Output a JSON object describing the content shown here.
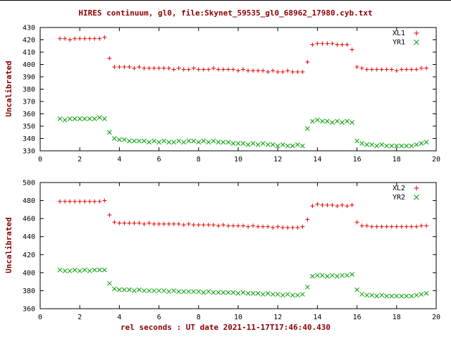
{
  "title": "HIRES continuum, gl0, file:Skynet_59535_gl0_68962_17980.cyb.txt",
  "xlabel": "rel seconds : UT date 2021-11-17T17:46:40.430",
  "colors": {
    "red_series": "#e60000",
    "green_series": "#00a000",
    "label_text": "#8b0000",
    "tick_text": "#000000"
  },
  "chart_data": [
    {
      "type": "scatter",
      "ylabel": "Uncalibrated",
      "xlim": [
        0,
        20
      ],
      "ylim": [
        330,
        430
      ],
      "xtick": 2,
      "ytick": 10,
      "grid": false,
      "legend_position": "top-right-inside",
      "x": [
        1,
        1.25,
        1.5,
        1.75,
        2,
        2.25,
        2.5,
        2.75,
        3,
        3.25,
        3.5,
        3.75,
        4,
        4.25,
        4.5,
        4.75,
        5,
        5.25,
        5.5,
        5.75,
        6,
        6.25,
        6.5,
        6.75,
        7,
        7.25,
        7.5,
        7.75,
        8,
        8.25,
        8.5,
        8.75,
        9,
        9.25,
        9.5,
        9.75,
        10,
        10.25,
        10.5,
        10.75,
        11,
        11.25,
        11.5,
        11.75,
        12,
        12.25,
        12.5,
        12.75,
        13,
        13.25,
        13.5,
        13.75,
        14,
        14.25,
        14.5,
        14.75,
        15,
        15.25,
        15.5,
        15.75,
        16,
        16.25,
        16.5,
        16.75,
        17,
        17.25,
        17.5,
        17.75,
        18,
        18.25,
        18.5,
        18.75,
        19,
        19.25,
        19.5
      ],
      "series": [
        {
          "name": "XL1",
          "marker": "plus",
          "color": "#e60000",
          "values": [
            421,
            421,
            420,
            421,
            421,
            421,
            421,
            421,
            421,
            422,
            405,
            398,
            398,
            398,
            398,
            397,
            398,
            397,
            397,
            397,
            397,
            397,
            397,
            396,
            397,
            396,
            396,
            397,
            396,
            396,
            396,
            397,
            396,
            396,
            396,
            396,
            395,
            396,
            395,
            395,
            395,
            395,
            394,
            395,
            394,
            394,
            395,
            394,
            394,
            394,
            402,
            416,
            417,
            417,
            417,
            417,
            416,
            416,
            416,
            412,
            398,
            397,
            396,
            396,
            396,
            396,
            396,
            396,
            395,
            396,
            396,
            396,
            396,
            397,
            397
          ]
        },
        {
          "name": "YR1",
          "marker": "cross",
          "color": "#00a000",
          "values": [
            356,
            355,
            356,
            356,
            356,
            356,
            356,
            356,
            357,
            356,
            345,
            340,
            339,
            339,
            338,
            338,
            338,
            338,
            337,
            338,
            337,
            338,
            337,
            337,
            338,
            337,
            338,
            338,
            337,
            338,
            337,
            338,
            337,
            337,
            337,
            336,
            336,
            336,
            335,
            336,
            335,
            336,
            335,
            335,
            334,
            335,
            334,
            334,
            335,
            334,
            348,
            354,
            355,
            354,
            354,
            353,
            354,
            353,
            354,
            353,
            338,
            336,
            335,
            335,
            334,
            335,
            334,
            334,
            334,
            334,
            334,
            334,
            335,
            336,
            337
          ]
        }
      ]
    },
    {
      "type": "scatter",
      "ylabel": "Uncalibrated",
      "xlim": [
        0,
        20
      ],
      "ylim": [
        360,
        500
      ],
      "xtick": 2,
      "ytick": 20,
      "grid": false,
      "legend_position": "top-right-inside",
      "x": [
        1,
        1.25,
        1.5,
        1.75,
        2,
        2.25,
        2.5,
        2.75,
        3,
        3.25,
        3.5,
        3.75,
        4,
        4.25,
        4.5,
        4.75,
        5,
        5.25,
        5.5,
        5.75,
        6,
        6.25,
        6.5,
        6.75,
        7,
        7.25,
        7.5,
        7.75,
        8,
        8.25,
        8.5,
        8.75,
        9,
        9.25,
        9.5,
        9.75,
        10,
        10.25,
        10.5,
        10.75,
        11,
        11.25,
        11.5,
        11.75,
        12,
        12.25,
        12.5,
        12.75,
        13,
        13.25,
        13.5,
        13.75,
        14,
        14.25,
        14.5,
        14.75,
        15,
        15.25,
        15.5,
        15.75,
        16,
        16.25,
        16.5,
        16.75,
        17,
        17.25,
        17.5,
        17.75,
        18,
        18.25,
        18.5,
        18.75,
        19,
        19.25,
        19.5
      ],
      "series": [
        {
          "name": "XL2",
          "marker": "plus",
          "color": "#e60000",
          "values": [
            479,
            479,
            479,
            479,
            479,
            479,
            479,
            479,
            479,
            480,
            464,
            456,
            455,
            455,
            455,
            455,
            455,
            454,
            455,
            454,
            454,
            454,
            454,
            454,
            454,
            453,
            454,
            453,
            453,
            453,
            453,
            453,
            452,
            453,
            452,
            452,
            452,
            452,
            451,
            452,
            451,
            451,
            451,
            450,
            451,
            450,
            450,
            450,
            450,
            451,
            459,
            474,
            476,
            475,
            475,
            475,
            474,
            475,
            474,
            475,
            456,
            452,
            452,
            451,
            451,
            451,
            451,
            451,
            451,
            451,
            451,
            451,
            451,
            452,
            452
          ]
        },
        {
          "name": "YR2",
          "marker": "cross",
          "color": "#00a000",
          "values": [
            403,
            402,
            402,
            403,
            402,
            403,
            402,
            403,
            403,
            403,
            388,
            382,
            381,
            381,
            381,
            380,
            381,
            380,
            380,
            380,
            380,
            380,
            379,
            380,
            379,
            379,
            379,
            379,
            379,
            378,
            379,
            378,
            378,
            378,
            378,
            378,
            377,
            378,
            377,
            377,
            377,
            376,
            377,
            376,
            376,
            375,
            376,
            375,
            375,
            376,
            384,
            396,
            397,
            397,
            396,
            397,
            396,
            397,
            397,
            398,
            381,
            376,
            375,
            375,
            374,
            375,
            374,
            374,
            374,
            374,
            374,
            374,
            375,
            376,
            377
          ]
        }
      ]
    }
  ]
}
